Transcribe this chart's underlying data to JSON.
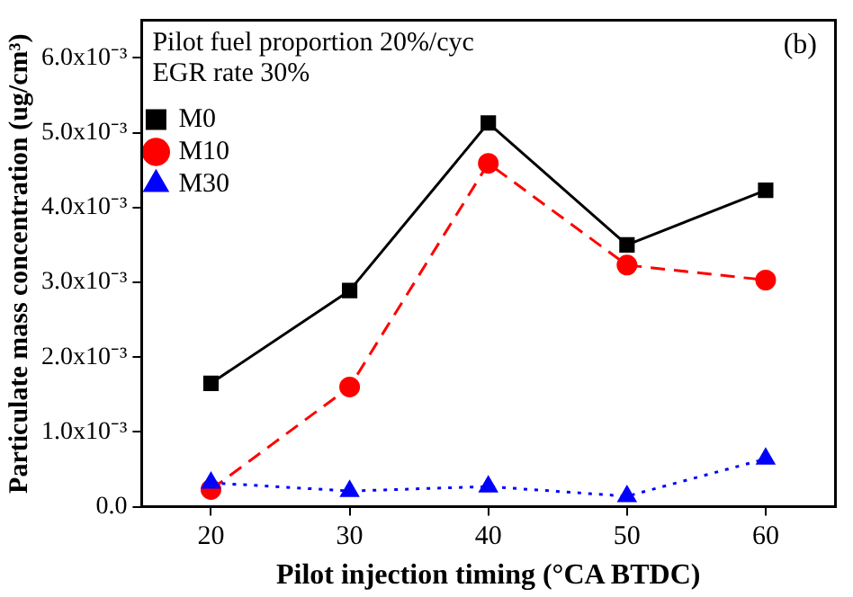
{
  "chart_data": {
    "type": "line",
    "xlabel": "Pilot injection timing (°CA BTDC)",
    "ylabel": "Particulate mass concentration (ug/cm³)",
    "x": [
      20,
      30,
      40,
      50,
      60
    ],
    "series": [
      {
        "name": "M0",
        "color": "#000000",
        "marker": "square",
        "line_style": "solid",
        "values": [
          0.00165,
          0.00289,
          0.00513,
          0.0035,
          0.00423
        ]
      },
      {
        "name": "M10",
        "color": "#ff0000",
        "marker": "circle",
        "line_style": "dashed",
        "values": [
          0.00023,
          0.0016,
          0.00459,
          0.00323,
          0.00303
        ]
      },
      {
        "name": "M30",
        "color": "#0000ff",
        "marker": "triangle",
        "line_style": "dotted",
        "values": [
          0.00032,
          0.00021,
          0.00027,
          0.00014,
          0.00064
        ]
      }
    ],
    "xlim": [
      15,
      65
    ],
    "xticks": [
      20,
      30,
      40,
      50,
      60
    ],
    "ylim": [
      0,
      0.0065
    ],
    "yticks": [
      {
        "value": 0,
        "label": "0.0"
      },
      {
        "value": 0.001,
        "label": "1.0x10⁻³"
      },
      {
        "value": 0.002,
        "label": "2.0x10⁻³"
      },
      {
        "value": 0.003,
        "label": "3.0x10⁻³"
      },
      {
        "value": 0.004,
        "label": "4.0x10⁻³"
      },
      {
        "value": 0.005,
        "label": "5.0x10⁻³"
      },
      {
        "value": 0.006,
        "label": "6.0x10⁻³"
      }
    ],
    "grid": false,
    "legend": "top left",
    "annotations": [
      "Pilot fuel proportion 20%/cyc",
      "EGR rate 30%",
      "(b)"
    ]
  }
}
